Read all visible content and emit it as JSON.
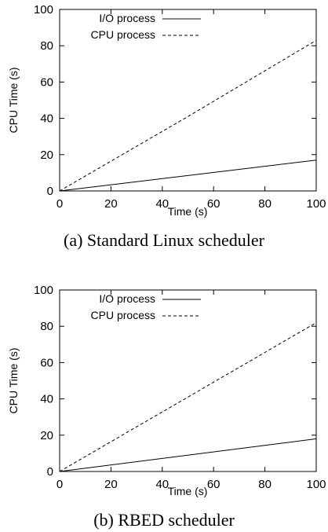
{
  "chart_data": [
    {
      "type": "line",
      "caption": "(a) Standard Linux scheduler",
      "xlabel": "Time (s)",
      "ylabel": "CPU Time (s)",
      "xlim": [
        0,
        100
      ],
      "ylim": [
        0,
        100
      ],
      "xticks": [
        "0",
        "20",
        "40",
        "60",
        "80",
        "100"
      ],
      "yticks": [
        "0",
        "20",
        "40",
        "60",
        "80",
        "100"
      ],
      "legend": "top-left",
      "grid": false,
      "series": [
        {
          "name": "I/O process",
          "style": "solid",
          "x": [
            0,
            100
          ],
          "y": [
            0,
            17
          ]
        },
        {
          "name": "CPU process",
          "style": "dashed",
          "x": [
            0,
            25,
            50,
            75,
            100
          ],
          "y": [
            0,
            20.5,
            41,
            62,
            83
          ]
        }
      ]
    },
    {
      "type": "line",
      "caption": "(b) RBED scheduler",
      "xlabel": "Time (s)",
      "ylabel": "CPU Time (s)",
      "xlim": [
        0,
        100
      ],
      "ylim": [
        0,
        100
      ],
      "xticks": [
        "0",
        "20",
        "40",
        "60",
        "80",
        "100"
      ],
      "yticks": [
        "0",
        "20",
        "40",
        "60",
        "80",
        "100"
      ],
      "legend": "top-left",
      "grid": false,
      "series": [
        {
          "name": "I/O process",
          "style": "solid",
          "x": [
            0,
            100
          ],
          "y": [
            0,
            18
          ]
        },
        {
          "name": "CPU process",
          "style": "dashed",
          "x": [
            0,
            25,
            50,
            75,
            100
          ],
          "y": [
            0,
            20.5,
            41,
            61.5,
            82
          ]
        }
      ]
    }
  ]
}
